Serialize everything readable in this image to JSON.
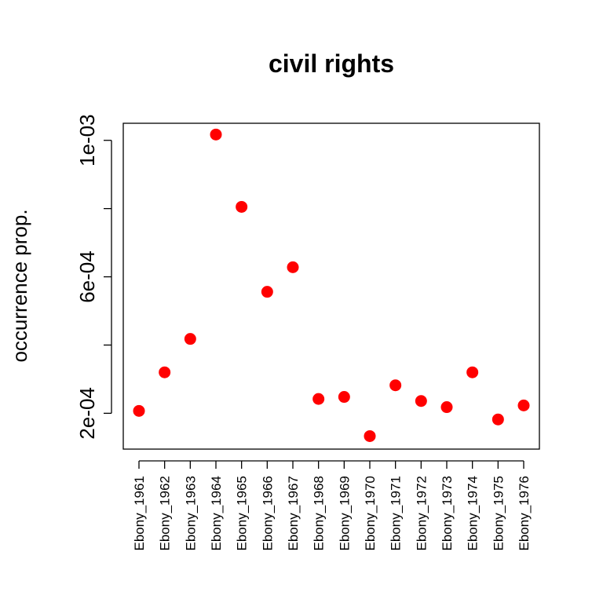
{
  "chart_data": {
    "type": "scatter",
    "title": "civil rights",
    "xlabel": "",
    "ylabel": "occurrence prop.",
    "categories": [
      "Ebony_1961",
      "Ebony_1962",
      "Ebony_1963",
      "Ebony_1964",
      "Ebony_1965",
      "Ebony_1966",
      "Ebony_1967",
      "Ebony_1968",
      "Ebony_1969",
      "Ebony_1970",
      "Ebony_1971",
      "Ebony_1972",
      "Ebony_1973",
      "Ebony_1974",
      "Ebony_1975",
      "Ebony_1976"
    ],
    "series": [
      {
        "values": [
          0.000207,
          0.00032,
          0.000418,
          0.001017,
          0.000805,
          0.000556,
          0.000628,
          0.000242,
          0.000248,
          0.000133,
          0.000282,
          0.000236,
          0.000218,
          0.00032,
          0.000182,
          0.000223
        ]
      }
    ],
    "yticks": [
      0.0002,
      0.0004,
      0.0006,
      0.0008,
      0.001
    ],
    "ytick_labels": [
      "2e-04",
      "",
      "6e-04",
      "",
      "1e-03"
    ],
    "ylim": [
      9.5e-05,
      0.00105
    ],
    "point_color": "#ff0000",
    "grid": false,
    "legend": "none"
  }
}
